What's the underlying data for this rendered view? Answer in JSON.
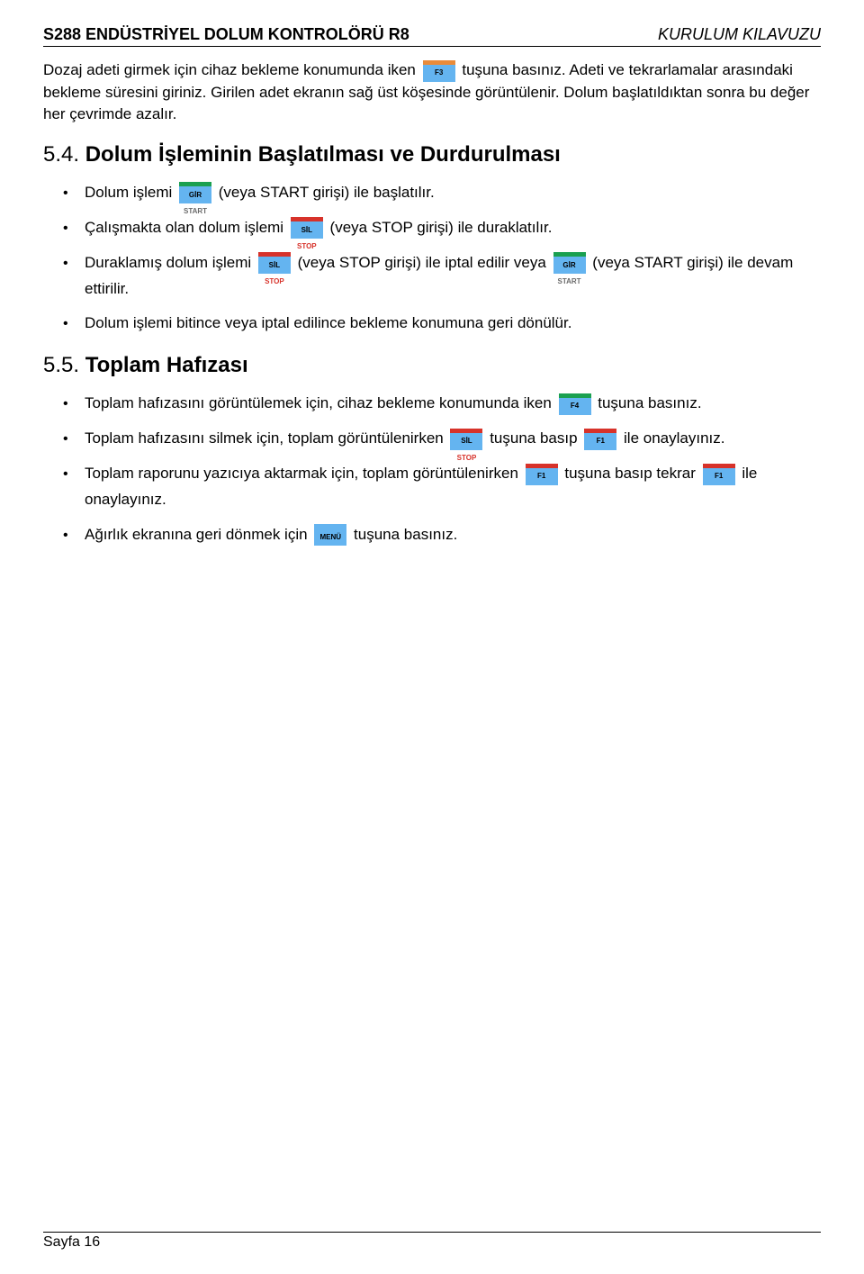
{
  "header": {
    "left": "S288 ENDÜSTRİYEL DOLUM KONTROLÖRÜ R8",
    "right": "KURULUM KILAVUZU"
  },
  "intro": {
    "p1a": "Dozaj adeti girmek için cihaz bekleme konumunda iken ",
    "p1b": " tuşuna basınız. Adeti ve tekrarlamalar arasındaki bekleme süresini giriniz. Girilen adet ekranın sağ üst köşesinde görüntülenir. Dolum başlatıldıktan sonra bu değer her çevrimde azalır."
  },
  "sec54": {
    "num": "5.4.",
    "title": " Dolum İşleminin Başlatılması ve Durdurulması",
    "b1a": "Dolum işlemi ",
    "b1b": " (veya START girişi) ile başlatılır.",
    "b2a": "Çalışmakta olan dolum işlemi ",
    "b2b": " (veya STOP girişi) ile duraklatılır.",
    "b3a": "Duraklamış dolum işlemi ",
    "b3b": " (veya STOP girişi) ile iptal edilir veya ",
    "b3c": " (veya START girişi) ile devam ettirilir.",
    "b4": "Dolum işlemi bitince veya iptal edilince bekleme konumuna geri dönülür."
  },
  "sec55": {
    "num": "5.5.",
    "title": " Toplam Hafızası",
    "b1a": "Toplam hafızasını görüntülemek için, cihaz bekleme konumunda iken ",
    "b1b": " tuşuna basınız.",
    "b2a": "Toplam hafızasını silmek için, toplam görüntülenirken ",
    "b2b": " tuşuna basıp ",
    "b2c": " ile onaylayınız.",
    "b3a": "Toplam raporunu yazıcıya aktarmak için, toplam görüntülenirken ",
    "b3b": " tuşuna basıp tekrar ",
    "b3c": " ile onaylayınız.",
    "b4a": "Ağırlık ekranına geri dönmek için ",
    "b4b": " tuşuna basınız."
  },
  "keys": {
    "f3": {
      "label": "F3",
      "sub": "",
      "topColor": "#e98b3a",
      "subColor": "#000000"
    },
    "gir": {
      "label": "GİR",
      "sub": "START",
      "topColor": "#1aa050",
      "subColor": "#6a6a6a"
    },
    "sil": {
      "label": "SİL",
      "sub": "STOP",
      "topColor": "#d7322a",
      "subColor": "#d7322a"
    },
    "f4": {
      "label": "F4",
      "sub": "",
      "topColor": "#1aa050",
      "subColor": "#000000"
    },
    "f1": {
      "label": "F1",
      "sub": "",
      "topColor": "#d7322a",
      "subColor": "#000000"
    },
    "menu": {
      "label": "MENÜ",
      "sub": "",
      "topColor": "#64b4f0",
      "subColor": "#000000"
    }
  },
  "footer": {
    "page": "Sayfa 16"
  },
  "colors": {
    "keyBody": "#64b4f0",
    "text": "#000000",
    "background": "#ffffff"
  }
}
